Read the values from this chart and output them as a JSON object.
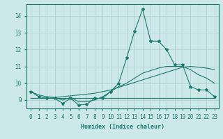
{
  "title": "",
  "xlabel": "Humidex (Indice chaleur)",
  "background_color": "#cce8e8",
  "grid_color": "#aacccc",
  "line_color": "#1a7a6e",
  "xlim": [
    -0.5,
    23.5
  ],
  "ylim": [
    8.5,
    14.7
  ],
  "xticks": [
    0,
    1,
    2,
    3,
    4,
    5,
    6,
    7,
    8,
    9,
    10,
    11,
    12,
    13,
    14,
    15,
    16,
    17,
    18,
    19,
    20,
    21,
    22,
    23
  ],
  "yticks": [
    9,
    10,
    11,
    12,
    13,
    14
  ],
  "series1_x": [
    0,
    1,
    2,
    3,
    4,
    5,
    6,
    7,
    8,
    9,
    10,
    11,
    12,
    13,
    14,
    15,
    16,
    17,
    18,
    19,
    20,
    21,
    22,
    23
  ],
  "series1_y": [
    9.5,
    9.2,
    9.1,
    9.1,
    8.8,
    9.1,
    8.7,
    8.75,
    9.1,
    9.1,
    9.5,
    10.0,
    11.5,
    13.1,
    14.4,
    12.5,
    12.5,
    12.0,
    11.1,
    11.1,
    9.8,
    9.6,
    9.6,
    9.2
  ],
  "series2_x": [
    0,
    1,
    2,
    3,
    4,
    5,
    6,
    7,
    8,
    9,
    10,
    11,
    12,
    13,
    14,
    15,
    16,
    17,
    18,
    19,
    20,
    21,
    22,
    23
  ],
  "series2_y": [
    9.1,
    9.1,
    9.1,
    9.15,
    9.2,
    9.25,
    9.3,
    9.35,
    9.4,
    9.5,
    9.6,
    9.75,
    9.9,
    10.05,
    10.2,
    10.35,
    10.5,
    10.65,
    10.8,
    10.95,
    11.0,
    10.95,
    10.9,
    10.8
  ],
  "series3_x": [
    0,
    23
  ],
  "series3_y": [
    9.1,
    9.1
  ],
  "series4_x": [
    0,
    1,
    2,
    3,
    4,
    5,
    6,
    7,
    8,
    9,
    10,
    11,
    12,
    13,
    14,
    15,
    16,
    17,
    18,
    19,
    20,
    21,
    22,
    23
  ],
  "series4_y": [
    9.5,
    9.3,
    9.2,
    9.15,
    9.0,
    9.15,
    8.9,
    8.9,
    9.0,
    9.2,
    9.5,
    9.8,
    10.0,
    10.3,
    10.6,
    10.75,
    10.9,
    11.0,
    11.0,
    11.0,
    10.8,
    10.5,
    10.3,
    10.0
  ]
}
